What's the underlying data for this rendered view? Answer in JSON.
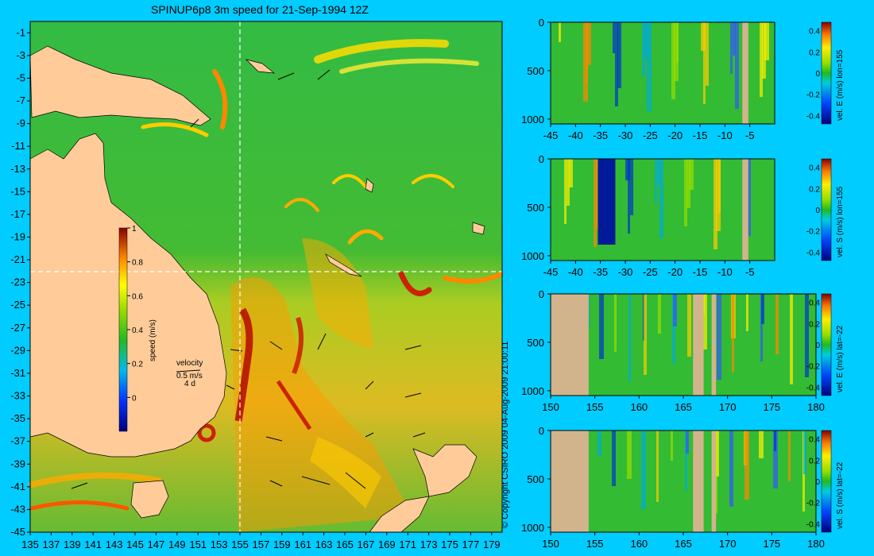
{
  "title": "SPINUP6p8 3m speed for 21-Sep-1994 12Z",
  "copyright": "© Copyright CSIRO 2009   04-Aug-2009 21:00:11",
  "colors": {
    "background": "#00ccff",
    "land": "#ffcc99",
    "section_land": "#d2b48c"
  },
  "chart_data": [
    {
      "type": "heatmap",
      "panel": "map",
      "title": "SPINUP6p8 3m speed for 21-Sep-1994 12Z",
      "xlabel": "",
      "ylabel": "",
      "xlim": [
        135,
        180
      ],
      "ylim": [
        -45,
        0
      ],
      "x_ticks": [
        "135",
        "137",
        "139",
        "141",
        "143",
        "145",
        "147",
        "149",
        "151",
        "153",
        "155",
        "157",
        "159",
        "161",
        "163",
        "165",
        "167",
        "169",
        "171",
        "173",
        "175",
        "177",
        "179"
      ],
      "y_ticks": [
        "-1",
        "-3",
        "-5",
        "-7",
        "-9",
        "-11",
        "-13",
        "-15",
        "-17",
        "-19",
        "-21",
        "-23",
        "-25",
        "-27",
        "-29",
        "-31",
        "-33",
        "-35",
        "-37",
        "-39",
        "-41",
        "-43",
        "-45"
      ],
      "colorbar": {
        "label": "speed (m/s)",
        "range": [
          -0.2,
          1
        ],
        "ticks": [
          "1",
          "0.8",
          "0.6",
          "0.4",
          "0.2",
          "0"
        ]
      },
      "section_lines": {
        "lon": 155,
        "lat": -22
      },
      "velocity_key": {
        "title": "velocity",
        "speed": "0.5 m/s",
        "time": "4 d"
      }
    },
    {
      "type": "heatmap",
      "panel": "section-1",
      "label": "vel. E (m/s) lon=155",
      "xlim": [
        -45,
        0
      ],
      "ylim": [
        1050,
        0
      ],
      "x_ticks": [
        "-45",
        "-40",
        "-35",
        "-30",
        "-25",
        "-20",
        "-15",
        "-10",
        "-5"
      ],
      "y_ticks": [
        "0",
        "500",
        "1000"
      ],
      "colorbar_ticks": [
        "0.4",
        "0.2",
        "0",
        "-0.2",
        "-0.4"
      ]
    },
    {
      "type": "heatmap",
      "panel": "section-2",
      "label": "vel. S (m/s) lon=155",
      "xlim": [
        -45,
        0
      ],
      "ylim": [
        1050,
        0
      ],
      "x_ticks": [
        "-45",
        "-40",
        "-35",
        "-30",
        "-25",
        "-20",
        "-15",
        "-10",
        "-5"
      ],
      "y_ticks": [
        "0",
        "500",
        "1000"
      ],
      "colorbar_ticks": [
        "0.4",
        "0.2",
        "0",
        "-0.2",
        "-0.4"
      ]
    },
    {
      "type": "heatmap",
      "panel": "section-3",
      "label": "vel. E (m/s) lat=-22",
      "xlim": [
        150,
        180
      ],
      "ylim": [
        1050,
        0
      ],
      "x_ticks": [
        "150",
        "155",
        "160",
        "165",
        "170",
        "175",
        "180"
      ],
      "y_ticks": [
        "0",
        "500",
        "1000"
      ],
      "colorbar_ticks": [
        "0.4",
        "0.2",
        "0",
        "-0.2",
        "-0.4"
      ]
    },
    {
      "type": "heatmap",
      "panel": "section-4",
      "label": "vel. S (m/s) lat=-22",
      "xlim": [
        150,
        180
      ],
      "ylim": [
        1050,
        0
      ],
      "x_ticks": [
        "150",
        "155",
        "160",
        "165",
        "170",
        "175",
        "180"
      ],
      "y_ticks": [
        "0",
        "500",
        "1000"
      ],
      "colorbar_ticks": [
        "0.4",
        "0.2",
        "0",
        "-0.2",
        "-0.4"
      ]
    }
  ]
}
